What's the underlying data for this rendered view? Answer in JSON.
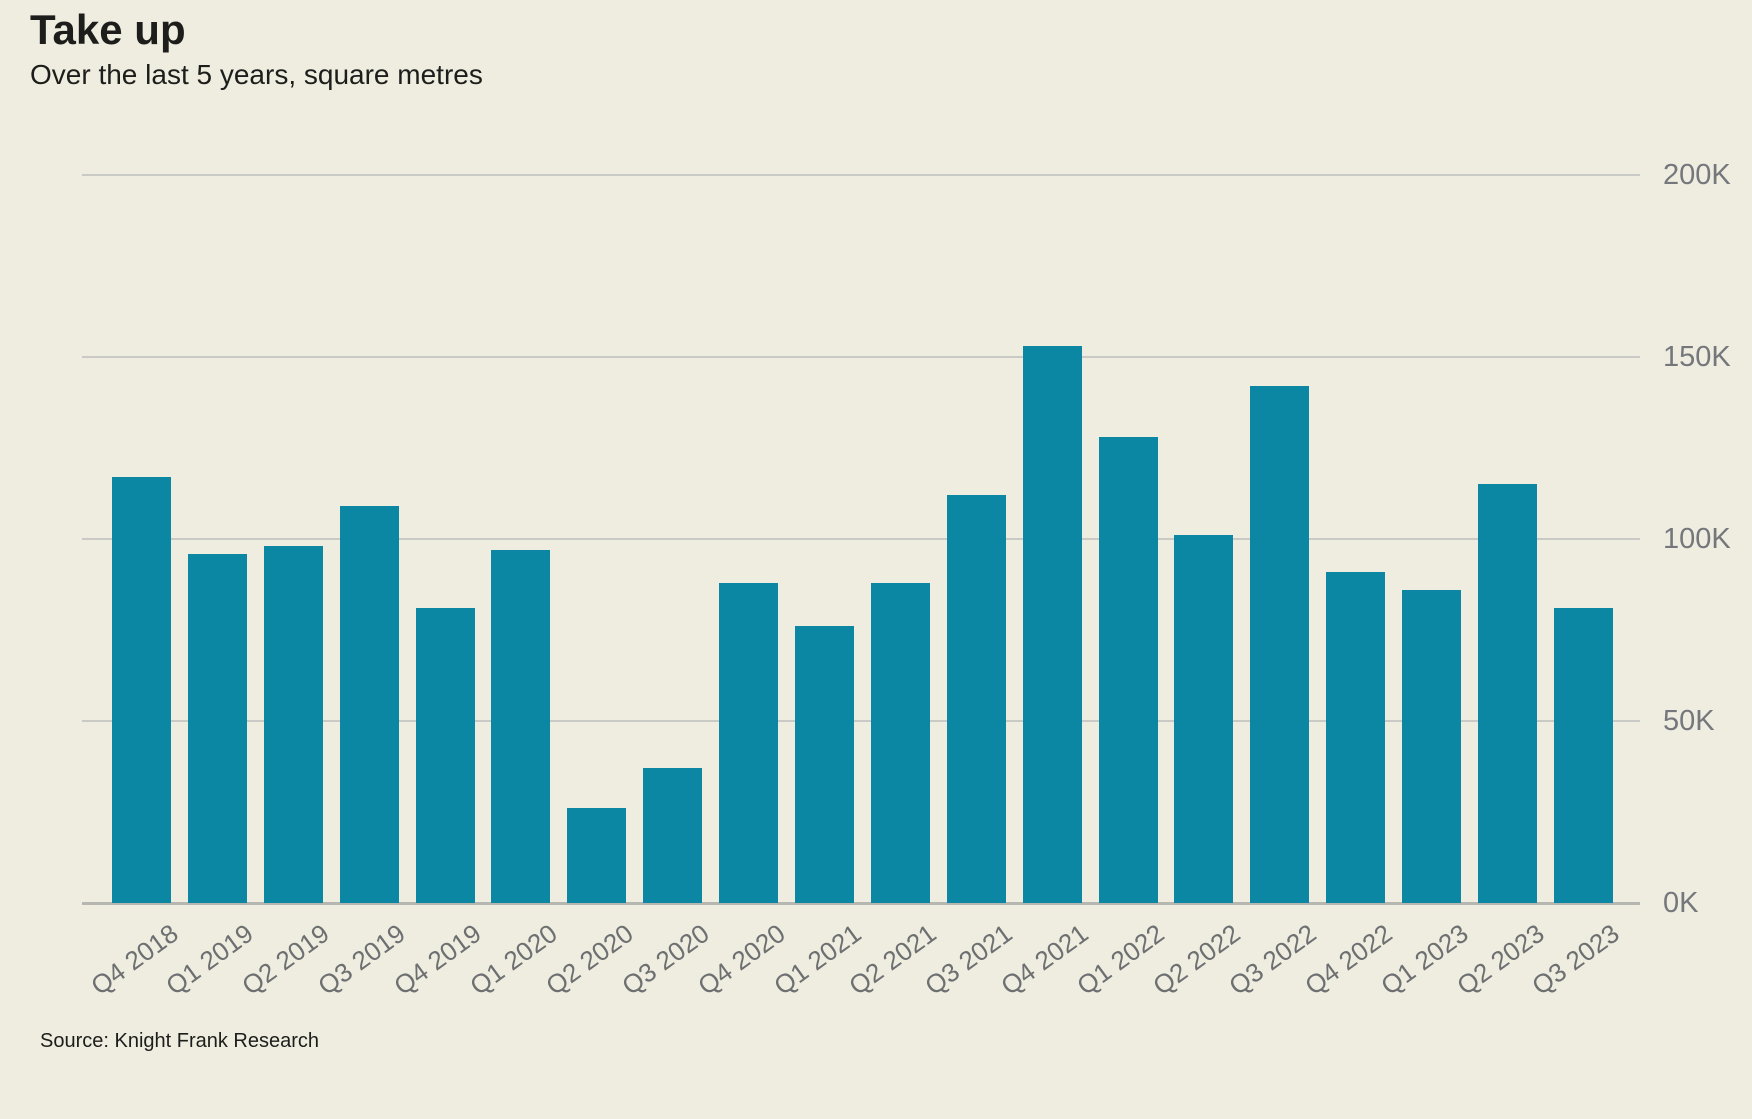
{
  "title": "Take up",
  "subtitle": "Over the last 5 years, square metres",
  "source": "Source: Knight Frank Research",
  "chart_data": {
    "type": "bar",
    "categories": [
      "Q4 2018",
      "Q1 2019",
      "Q2 2019",
      "Q3 2019",
      "Q4 2019",
      "Q1 2020",
      "Q2 2020",
      "Q3 2020",
      "Q4 2020",
      "Q1 2021",
      "Q2 2021",
      "Q3 2021",
      "Q4 2021",
      "Q1 2022",
      "Q2 2022",
      "Q3 2022",
      "Q4 2022",
      "Q1 2023",
      "Q2 2023",
      "Q3 2023"
    ],
    "values": [
      117000,
      96000,
      98000,
      109000,
      81000,
      97000,
      26000,
      37000,
      88000,
      76000,
      88000,
      112000,
      153000,
      128000,
      101000,
      142000,
      91000,
      86000,
      115000,
      81000
    ],
    "title": "Take up",
    "subtitle": "Over the last 5 years, square metres",
    "unit": "square metres",
    "xlabel": "",
    "ylabel": "",
    "ylim": [
      0,
      200000
    ],
    "yticks": [
      {
        "value": 0,
        "label": "0K"
      },
      {
        "value": 50000,
        "label": "50K"
      },
      {
        "value": 100000,
        "label": "100K"
      },
      {
        "value": 150000,
        "label": "150K"
      },
      {
        "value": 200000,
        "label": "200K"
      }
    ],
    "grid": "horizontal",
    "legend": "none"
  },
  "colors": {
    "background": "#eeede0",
    "bar": "#0b86a3",
    "gridline": "#c9c9c6",
    "axis_line": "#b7b7b1",
    "y_tick_label": "#75777c",
    "x_tick_label": "#6d6f71",
    "text": "#1d1d1b"
  }
}
